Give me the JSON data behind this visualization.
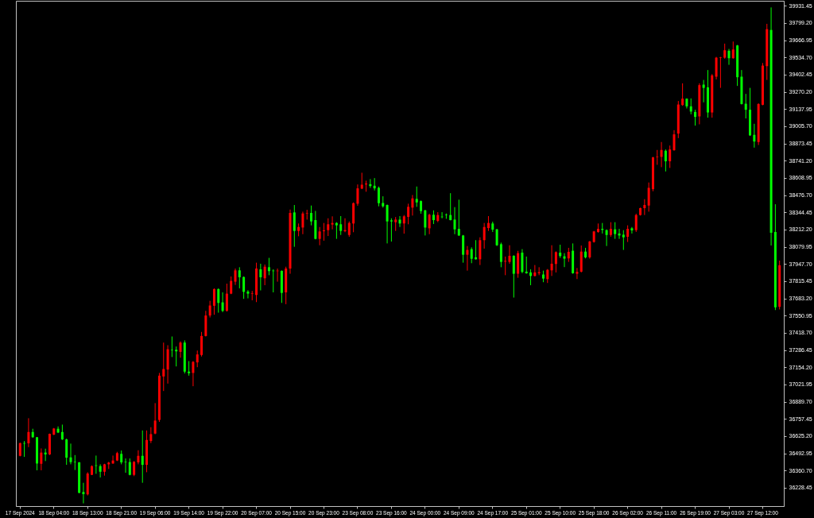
{
  "chart_data": {
    "type": "candlestick",
    "categories": [
      "17 Sep 2024",
      null,
      null,
      null,
      null,
      null,
      null,
      null,
      "18 Sep 04:00",
      null,
      null,
      null,
      null,
      null,
      null,
      null,
      "18 Sep 13:00",
      null,
      null,
      null,
      null,
      null,
      null,
      null,
      "18 Sep 21:00",
      null,
      null,
      null,
      null,
      null,
      null,
      null,
      "19 Sep 06:00",
      null,
      null,
      null,
      null,
      null,
      null,
      null,
      "19 Sep 14:00",
      null,
      null,
      null,
      null,
      null,
      null,
      null,
      "19 Sep 22:00",
      null,
      null,
      null,
      null,
      null,
      null,
      null,
      "20 Sep 07:00",
      null,
      null,
      null,
      null,
      null,
      null,
      null,
      "20 Sep 15:00",
      null,
      null,
      null,
      null,
      null,
      null,
      null,
      "20 Sep 23:00",
      null,
      null,
      null,
      null,
      null,
      null,
      null,
      "23 Sep 08:00",
      null,
      null,
      null,
      null,
      null,
      null,
      null,
      "23 Sep 16:00",
      null,
      null,
      null,
      null,
      null,
      null,
      null,
      "24 Sep 00:00",
      null,
      null,
      null,
      null,
      null,
      null,
      null,
      "24 Sep 09:00",
      null,
      null,
      null,
      null,
      null,
      null,
      null,
      "24 Sep 17:00",
      null,
      null,
      null,
      null,
      null,
      null,
      null,
      "25 Sep 01:00",
      null,
      null,
      null,
      null,
      null,
      null,
      null,
      "25 Sep 10:00",
      null,
      null,
      null,
      null,
      null,
      null,
      null,
      "25 Sep 18:00",
      null,
      null,
      null,
      null,
      null,
      null,
      null,
      "26 Sep 02:00",
      null,
      null,
      null,
      null,
      null,
      null,
      null,
      "26 Sep 11:00",
      null,
      null,
      null,
      null,
      null,
      null,
      null,
      "26 Sep 19:00",
      null,
      null,
      null,
      null,
      null,
      null,
      null,
      "27 Sep 03:00",
      null,
      null,
      null,
      null,
      null,
      null,
      null,
      "27 Sep 12:00",
      null,
      null,
      null,
      null
    ],
    "ohlc": [
      [
        36474,
        36576,
        36470,
        36572
      ],
      [
        36572,
        36588,
        36466,
        36568
      ],
      [
        36570,
        36763,
        36541,
        36657
      ],
      [
        36657,
        36682,
        36613,
        36617
      ],
      [
        36617,
        36619,
        36363,
        36415
      ],
      [
        36413,
        36531,
        36363,
        36499
      ],
      [
        36499,
        36529,
        36434,
        36485
      ],
      [
        36485,
        36645,
        36480,
        36643
      ],
      [
        36637,
        36688,
        36633,
        36684
      ],
      [
        36682,
        36700,
        36649,
        36653
      ],
      [
        36657,
        36714,
        36596,
        36600
      ],
      [
        36600,
        36606,
        36405,
        36460
      ],
      [
        36462,
        36568,
        36409,
        36426
      ],
      [
        36428,
        36480,
        36365,
        36424
      ],
      [
        36424,
        36426,
        36186,
        36190
      ],
      [
        36196,
        36267,
        36109,
        36180
      ],
      [
        36178,
        36348,
        36170,
        36338
      ],
      [
        36328,
        36401,
        36326,
        36395
      ],
      [
        36401,
        36476,
        36336,
        36397
      ],
      [
        36395,
        36409,
        36308,
        36352
      ],
      [
        36352,
        36413,
        36322,
        36409
      ],
      [
        36409,
        36428,
        36373,
        36422
      ],
      [
        36415,
        36476,
        36413,
        36438
      ],
      [
        36438,
        36505,
        36434,
        36495
      ],
      [
        36489,
        36515,
        36409,
        36424
      ],
      [
        36428,
        36454,
        36344,
        36424
      ],
      [
        36426,
        36454,
        36324,
        36328
      ],
      [
        36328,
        36434,
        36318,
        36428
      ],
      [
        36424,
        36517,
        36409,
        36474
      ],
      [
        36474,
        36669,
        36267,
        36405
      ],
      [
        36405,
        36669,
        36348,
        36596
      ],
      [
        36588,
        36694,
        36572,
        36641
      ],
      [
        36645,
        36879,
        36640,
        36745
      ],
      [
        36750,
        37111,
        36735,
        37090
      ],
      [
        37084,
        37344,
        36972,
        37141
      ],
      [
        37137,
        37324,
        37029,
        37293
      ],
      [
        37289,
        37391,
        37233,
        37285
      ],
      [
        37289,
        37314,
        37161,
        37277
      ],
      [
        37273,
        37354,
        37228,
        37344
      ],
      [
        37344,
        37361,
        37107,
        37121
      ],
      [
        37121,
        37202,
        37090,
        37109
      ],
      [
        37111,
        37202,
        37009,
        37196
      ],
      [
        37192,
        37283,
        37155,
        37253
      ],
      [
        37249,
        37426,
        37237,
        37395
      ],
      [
        37395,
        37588,
        37391,
        37552
      ],
      [
        37552,
        37665,
        37537,
        37629
      ],
      [
        37627,
        37761,
        37558,
        37755
      ],
      [
        37755,
        37761,
        37574,
        37649
      ],
      [
        37653,
        37730,
        37578,
        37588
      ],
      [
        37588,
        37797,
        37582,
        37720
      ],
      [
        37720,
        37852,
        37716,
        37818
      ],
      [
        37812,
        37913,
        37787,
        37899
      ],
      [
        37899,
        37923,
        37761,
        37846
      ],
      [
        37848,
        37852,
        37680,
        37734
      ],
      [
        37736,
        37747,
        37684,
        37720
      ],
      [
        37718,
        37741,
        37669,
        37722
      ],
      [
        37710,
        37958,
        37655,
        37913
      ],
      [
        37907,
        37950,
        37745,
        37846
      ],
      [
        37838,
        37944,
        37785,
        37927
      ],
      [
        37923,
        37995,
        37862,
        37893
      ],
      [
        37897,
        37907,
        37730,
        37893
      ],
      [
        37893,
        37913,
        37812,
        37897
      ],
      [
        37895,
        37899,
        37649,
        37726
      ],
      [
        37730,
        37927,
        37639,
        37913
      ],
      [
        37913,
        38366,
        37873,
        38340
      ],
      [
        38344,
        38401,
        38080,
        38202
      ],
      [
        38202,
        38259,
        38161,
        38232
      ],
      [
        38228,
        38350,
        38177,
        38336
      ],
      [
        38334,
        38364,
        38289,
        38338
      ],
      [
        38340,
        38397,
        38245,
        38275
      ],
      [
        38285,
        38356,
        38137,
        38141
      ],
      [
        38141,
        38232,
        38092,
        38198
      ],
      [
        38200,
        38263,
        38127,
        38206
      ],
      [
        38208,
        38299,
        38163,
        38253
      ],
      [
        38251,
        38314,
        38214,
        38263
      ],
      [
        38263,
        38269,
        38141,
        38245
      ],
      [
        38253,
        38316,
        38171,
        38202
      ],
      [
        38200,
        38299,
        38192,
        38208
      ],
      [
        38171,
        38275,
        38157,
        38263
      ],
      [
        38259,
        38421,
        38192,
        38415
      ],
      [
        38411,
        38559,
        38395,
        38529
      ],
      [
        38527,
        38649,
        38523,
        38557
      ],
      [
        38559,
        38588,
        38503,
        38566
      ],
      [
        38561,
        38600,
        38533,
        38547
      ],
      [
        38549,
        38608,
        38513,
        38529
      ],
      [
        38533,
        38543,
        38391,
        38415
      ],
      [
        38417,
        38468,
        38381,
        38391
      ],
      [
        38401,
        38405,
        38106,
        38275
      ],
      [
        38283,
        38299,
        38120,
        38275
      ],
      [
        38269,
        38309,
        38202,
        38289
      ],
      [
        38289,
        38316,
        38232,
        38259
      ],
      [
        38259,
        38324,
        38181,
        38314
      ],
      [
        38310,
        38411,
        38253,
        38387
      ],
      [
        38381,
        38478,
        38320,
        38452
      ],
      [
        38448,
        38543,
        38387,
        38421
      ],
      [
        38431,
        38436,
        38334,
        38354
      ],
      [
        38360,
        38364,
        38167,
        38228
      ],
      [
        38222,
        38334,
        38177,
        38326
      ],
      [
        38326,
        38360,
        38255,
        38285
      ],
      [
        38279,
        38346,
        38269,
        38324
      ],
      [
        38312,
        38346,
        38299,
        38308
      ],
      [
        38326,
        38336,
        38295,
        38322
      ],
      [
        38324,
        38492,
        38283,
        38285
      ],
      [
        38289,
        38385,
        38177,
        38214
      ],
      [
        38218,
        38442,
        38163,
        38167
      ],
      [
        38167,
        38171,
        37958,
        38019
      ],
      [
        38019,
        38086,
        37897,
        38056
      ],
      [
        38062,
        38076,
        37954,
        37988
      ],
      [
        37999,
        38131,
        37982,
        37984
      ],
      [
        37984,
        38153,
        37940,
        38131
      ],
      [
        38131,
        38263,
        38066,
        38232
      ],
      [
        38224,
        38316,
        38202,
        38263
      ],
      [
        38259,
        38273,
        38194,
        38212
      ],
      [
        38214,
        38218,
        38086,
        38092
      ],
      [
        38100,
        38112,
        37923,
        37964
      ],
      [
        37966,
        38005,
        37862,
        37972
      ],
      [
        37964,
        38092,
        37950,
        38011
      ],
      [
        38011,
        38015,
        37690,
        37873
      ],
      [
        37873,
        38049,
        37842,
        38031
      ],
      [
        38035,
        38062,
        37877,
        37887
      ],
      [
        37889,
        38005,
        37873,
        37877
      ],
      [
        37883,
        37907,
        37785,
        37856
      ],
      [
        37856,
        37940,
        37852,
        37883
      ],
      [
        37877,
        37923,
        37862,
        37885
      ],
      [
        37867,
        37897,
        37808,
        37836
      ],
      [
        37832,
        37909,
        37802,
        37903
      ],
      [
        37899,
        38092,
        37856,
        37950
      ],
      [
        37948,
        38045,
        37883,
        38039
      ],
      [
        38035,
        38096,
        37995,
        38009
      ],
      [
        38007,
        38031,
        37924,
        37989
      ],
      [
        37991,
        38072,
        37964,
        38041
      ],
      [
        38050,
        38106,
        37873,
        37877
      ],
      [
        37873,
        37917,
        37832,
        37887
      ],
      [
        37889,
        38090,
        37883,
        38043
      ],
      [
        38043,
        38072,
        37991,
        37999
      ],
      [
        37999,
        38125,
        37989,
        38121
      ],
      [
        38117,
        38202,
        38112,
        38198
      ],
      [
        38194,
        38259,
        38188,
        38218
      ],
      [
        38218,
        38263,
        38182,
        38210
      ],
      [
        38208,
        38214,
        38086,
        38171
      ],
      [
        38171,
        38269,
        38157,
        38218
      ],
      [
        38214,
        38269,
        38141,
        38178
      ],
      [
        38182,
        38218,
        38141,
        38167
      ],
      [
        38173,
        38208,
        38056,
        38153
      ],
      [
        38157,
        38245,
        38117,
        38218
      ],
      [
        38222,
        38232,
        38182,
        38206
      ],
      [
        38208,
        38334,
        38194,
        38324
      ],
      [
        38324,
        38381,
        38320,
        38377
      ],
      [
        38377,
        38446,
        38324,
        38401
      ],
      [
        38397,
        38574,
        38350,
        38533
      ],
      [
        38523,
        38771,
        38507,
        38767
      ],
      [
        38769,
        38824,
        38710,
        38773
      ],
      [
        38771,
        38885,
        38692,
        38824
      ],
      [
        38818,
        38828,
        38659,
        38737
      ],
      [
        38737,
        38858,
        38686,
        38828
      ],
      [
        38822,
        38976,
        38818,
        38944
      ],
      [
        38950,
        39200,
        38915,
        39173
      ],
      [
        39169,
        39336,
        39163,
        39218
      ],
      [
        39218,
        39220,
        39143,
        39159
      ],
      [
        39159,
        39220,
        39098,
        39119
      ],
      [
        39116,
        39133,
        39011,
        39078
      ],
      [
        39082,
        39336,
        39021,
        39322
      ],
      [
        39326,
        39362,
        39190,
        39301
      ],
      [
        39305,
        39438,
        39072,
        39112
      ],
      [
        39112,
        39407,
        39072,
        39397
      ],
      [
        39387,
        39539,
        39366,
        39533
      ],
      [
        39531,
        39539,
        39301,
        39535
      ],
      [
        39533,
        39641,
        39525,
        39590
      ],
      [
        39586,
        39600,
        39478,
        39529
      ],
      [
        39529,
        39657,
        39525,
        39596
      ],
      [
        39627,
        39631,
        39316,
        39383
      ],
      [
        39387,
        39438,
        39173,
        39177
      ],
      [
        39179,
        39255,
        39066,
        39133
      ],
      [
        39133,
        39301,
        38932,
        38936
      ],
      [
        38940,
        39025,
        38842,
        38889
      ],
      [
        38885,
        39183,
        38862,
        39177
      ],
      [
        39171,
        39492,
        39167,
        39472
      ],
      [
        39468,
        39793,
        39362,
        39752
      ],
      [
        39746,
        39919,
        38090,
        38188
      ],
      [
        38194,
        38407,
        37594,
        37615
      ],
      [
        37619,
        37974,
        37599,
        37938
      ]
    ],
    "colors": [
      "#ff0000",
      "#00ff00",
      "#ff0000",
      "#00ff00",
      "#00ff00",
      "#ff0000",
      "#00ff00",
      "#ff0000",
      "#ff0000",
      "#00ff00",
      "#00ff00",
      "#00ff00",
      "#00ff00",
      "#00ff00",
      "#00ff00",
      "#00ff00",
      "#ff0000",
      "#ff0000",
      "#00ff00",
      "#00ff00",
      "#ff0000",
      "#ff0000",
      "#ff0000",
      "#ff0000",
      "#00ff00",
      "#00ff00",
      "#00ff00",
      "#ff0000",
      "#ff0000",
      "#00ff00",
      "#ff0000",
      "#ff0000",
      "#ff0000",
      "#ff0000",
      "#ff0000",
      "#ff0000",
      "#00ff00",
      "#00ff00",
      "#ff0000",
      "#00ff00",
      "#00ff00",
      "#ff0000",
      "#ff0000",
      "#ff0000",
      "#ff0000",
      "#ff0000",
      "#ff0000",
      "#00ff00",
      "#00ff00",
      "#ff0000",
      "#ff0000",
      "#ff0000",
      "#00ff00",
      "#00ff00",
      "#00ff00",
      "#ff0000",
      "#ff0000",
      "#00ff00",
      "#ff0000",
      "#00ff00",
      "#00ff00",
      "#ff0000",
      "#00ff00",
      "#ff0000",
      "#ff0000",
      "#00ff00",
      "#ff0000",
      "#ff0000",
      "#ff0000",
      "#00ff00",
      "#00ff00",
      "#ff0000",
      "#ff0000",
      "#ff0000",
      "#ff0000",
      "#00ff00",
      "#00ff00",
      "#ff0000",
      "#ff0000",
      "#ff0000",
      "#ff0000",
      "#ff0000",
      "#ff0000",
      "#00ff00",
      "#00ff00",
      "#00ff00",
      "#00ff00",
      "#00ff00",
      "#00ff00",
      "#ff0000",
      "#00ff00",
      "#ff0000",
      "#ff0000",
      "#ff0000",
      "#00ff00",
      "#00ff00",
      "#00ff00",
      "#ff0000",
      "#00ff00",
      "#ff0000",
      "#00ff00",
      "#00ff00",
      "#00ff00",
      "#00ff00",
      "#00ff00",
      "#00ff00",
      "#ff0000",
      "#00ff00",
      "#00ff00",
      "#ff0000",
      "#ff0000",
      "#ff0000",
      "#00ff00",
      "#00ff00",
      "#00ff00",
      "#ff0000",
      "#ff0000",
      "#00ff00",
      "#ff0000",
      "#00ff00",
      "#00ff00",
      "#00ff00",
      "#ff0000",
      "#ff0000",
      "#00ff00",
      "#ff0000",
      "#ff0000",
      "#ff0000",
      "#00ff00",
      "#00ff00",
      "#ff0000",
      "#00ff00",
      "#ff0000",
      "#ff0000",
      "#00ff00",
      "#ff0000",
      "#ff0000",
      "#ff0000",
      "#00ff00",
      "#00ff00",
      "#ff0000",
      "#00ff00",
      "#00ff00",
      "#00ff00",
      "#ff0000",
      "#00ff00",
      "#ff0000",
      "#ff0000",
      "#ff0000",
      "#ff0000",
      "#ff0000",
      "#ff0000",
      "#ff0000",
      "#00ff00",
      "#ff0000",
      "#ff0000",
      "#ff0000",
      "#ff0000",
      "#00ff00",
      "#00ff00",
      "#00ff00",
      "#ff0000",
      "#00ff00",
      "#00ff00",
      "#ff0000",
      "#ff0000",
      "#ff0000",
      "#ff0000",
      "#00ff00",
      "#ff0000",
      "#00ff00",
      "#00ff00",
      "#00ff00",
      "#00ff00",
      "#00ff00",
      "#ff0000",
      "#ff0000",
      "#ff0000",
      "#00ff00",
      "#00ff00",
      "#ff0000"
    ],
    "ylim": [
      36088,
      39970
    ],
    "yticks": [
      36228.45,
      {
        "value": 36360.7,
        "label": "36360.70"
      },
      36492.95,
      {
        "value": 36625.2,
        "label": "36625.20"
      },
      36757.45,
      {
        "value": 36889.7,
        "label": "36889.70"
      },
      37021.95,
      {
        "value": 37154.2,
        "label": "37154.20"
      },
      37286.45,
      {
        "value": 37418.7,
        "label": "37418.70"
      },
      37550.95,
      {
        "value": 37683.2,
        "label": "37683.20"
      },
      37815.45,
      {
        "value": 37947.7,
        "label": "37947.70"
      },
      38079.95,
      {
        "value": 38212.2,
        "label": "38212.20"
      },
      38344.45,
      {
        "value": 38476.7,
        "label": "38476.70"
      },
      38608.95,
      {
        "value": 38741.2,
        "label": "38741.20"
      },
      38873.45,
      {
        "value": 39005.7,
        "label": "39005.70"
      },
      39137.95,
      {
        "value": 39270.2,
        "label": "39270.20"
      },
      39402.45,
      {
        "value": 39534.7,
        "label": "39534.70"
      },
      39666.95,
      {
        "value": 39799.2,
        "label": "39799.20"
      },
      39931.45
    ],
    "grid": false
  }
}
